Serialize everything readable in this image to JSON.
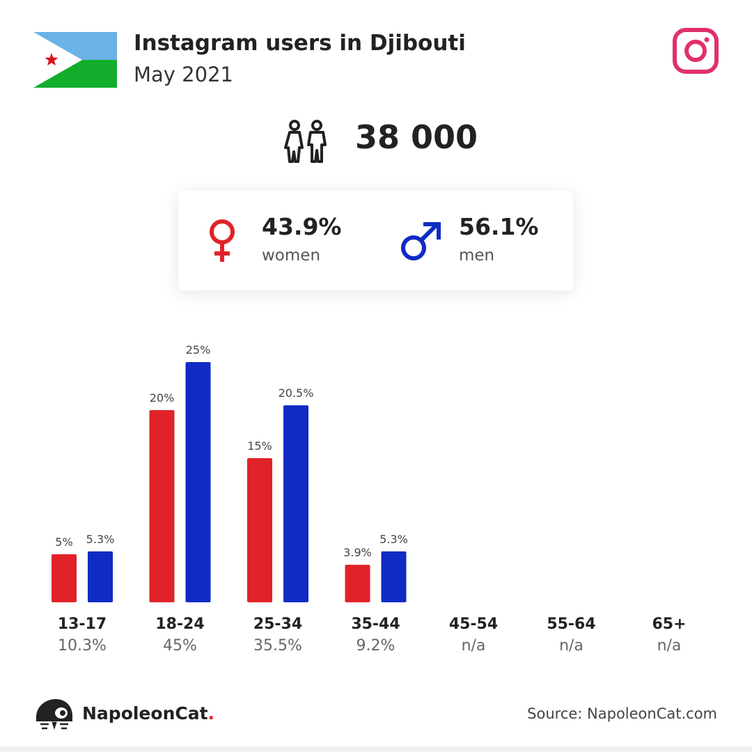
{
  "header": {
    "title": "Instagram users in Djibouti",
    "subtitle": "May 2021",
    "flag_icon": "djibouti-flag-icon",
    "platform_icon": "instagram-icon"
  },
  "summary": {
    "total_users": "38 000",
    "icon": "users-icon"
  },
  "gender": {
    "women": {
      "value": "43.9%",
      "label": "women",
      "icon": "female-icon",
      "color": "#e02328"
    },
    "men": {
      "value": "56.1%",
      "label": "men",
      "icon": "male-icon",
      "color": "#0f2bc4"
    }
  },
  "colors": {
    "women": "#e02328",
    "men": "#0f2bc4",
    "instagram": "#e1306c",
    "flag_blue": "#6ab2e7",
    "flag_green": "#12ad2b",
    "flag_star": "#d7141a"
  },
  "chart_data": {
    "type": "bar",
    "categories": [
      "13-17",
      "18-24",
      "25-34",
      "35-44",
      "45-54",
      "55-64",
      "65+"
    ],
    "category_totals": [
      "10.3%",
      "45%",
      "35.5%",
      "9.2%",
      "n/a",
      "n/a",
      "n/a"
    ],
    "series": [
      {
        "values": [
          5,
          20,
          15,
          3.9,
          null,
          null,
          null
        ],
        "labels": [
          "5%",
          "20%",
          "15%",
          "3.9%",
          "",
          "",
          ""
        ],
        "color": "#e02328"
      },
      {
        "values": [
          5.3,
          25,
          20.5,
          5.3,
          null,
          null,
          null
        ],
        "labels": [
          "5.3%",
          "25%",
          "20.5%",
          "5.3%",
          "",
          "",
          ""
        ],
        "color": "#0f2bc4"
      }
    ],
    "ylim": [
      0,
      25
    ],
    "grid": false
  },
  "footer": {
    "brand": "NapoleonCat",
    "brand_dot": ".",
    "source": "Source: NapoleonCat.com",
    "logo_icon": "napoleoncat-logo-icon"
  }
}
